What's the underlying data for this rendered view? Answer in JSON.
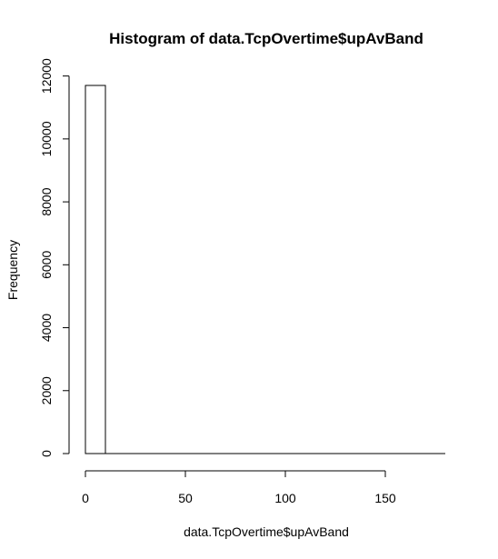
{
  "chart_data": {
    "type": "bar",
    "title": "Histogram of data.TcpOvertime$upAvBand",
    "xlabel": "data.TcpOvertime$upAvBand",
    "ylabel": "Frequency",
    "bins": [
      {
        "x0": 0,
        "x1": 10,
        "count": 11700
      },
      {
        "x0": 10,
        "x1": 20,
        "count": 0
      },
      {
        "x0": 20,
        "x1": 30,
        "count": 0
      },
      {
        "x0": 30,
        "x1": 40,
        "count": 0
      },
      {
        "x0": 40,
        "x1": 50,
        "count": 0
      },
      {
        "x0": 50,
        "x1": 60,
        "count": 0
      },
      {
        "x0": 60,
        "x1": 70,
        "count": 0
      },
      {
        "x0": 70,
        "x1": 80,
        "count": 0
      },
      {
        "x0": 80,
        "x1": 90,
        "count": 0
      },
      {
        "x0": 90,
        "x1": 100,
        "count": 0
      },
      {
        "x0": 100,
        "x1": 110,
        "count": 0
      },
      {
        "x0": 110,
        "x1": 120,
        "count": 0
      },
      {
        "x0": 120,
        "x1": 130,
        "count": 0
      },
      {
        "x0": 130,
        "x1": 140,
        "count": 0
      },
      {
        "x0": 140,
        "x1": 150,
        "count": 0
      },
      {
        "x0": 150,
        "x1": 160,
        "count": 0
      },
      {
        "x0": 160,
        "x1": 170,
        "count": 0
      },
      {
        "x0": 170,
        "x1": 180,
        "count": 0
      }
    ],
    "x_ticks": [
      0,
      50,
      100,
      150
    ],
    "x_tick_labels": [
      "0",
      "50",
      "100",
      "150"
    ],
    "y_ticks": [
      0,
      2000,
      4000,
      6000,
      8000,
      10000,
      12000
    ],
    "y_tick_labels": [
      "0",
      "2000",
      "4000",
      "6000",
      "8000",
      "10000",
      "12000"
    ],
    "xlim": [
      0,
      180
    ],
    "ylim": [
      0,
      12000
    ],
    "grid": false
  }
}
